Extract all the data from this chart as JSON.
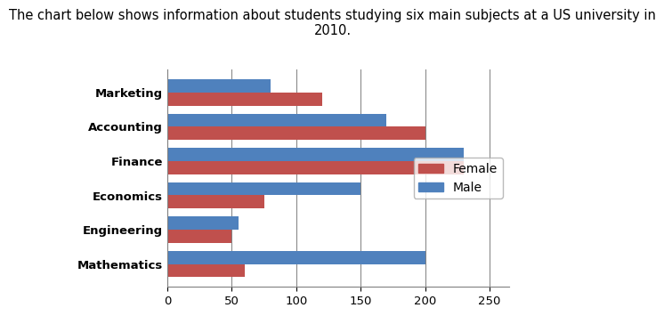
{
  "title": "The chart below shows information about students studying six main subjects at a US university in\n2010.",
  "categories": [
    "Marketing",
    "Accounting",
    "Finance",
    "Economics",
    "Engineering",
    "Mathematics"
  ],
  "female_values": [
    120,
    200,
    230,
    75,
    50,
    60
  ],
  "male_values": [
    80,
    170,
    230,
    150,
    55,
    200
  ],
  "female_color": "#C0504D",
  "male_color": "#4F81BD",
  "xlim": [
    0,
    265
  ],
  "xticks": [
    0,
    50,
    100,
    150,
    200,
    250
  ],
  "legend_labels": [
    "Female",
    "Male"
  ],
  "background_color": "#ffffff",
  "bar_height": 0.38,
  "title_fontsize": 10.5,
  "axis_label_fontsize": 9.5,
  "legend_fontsize": 10
}
